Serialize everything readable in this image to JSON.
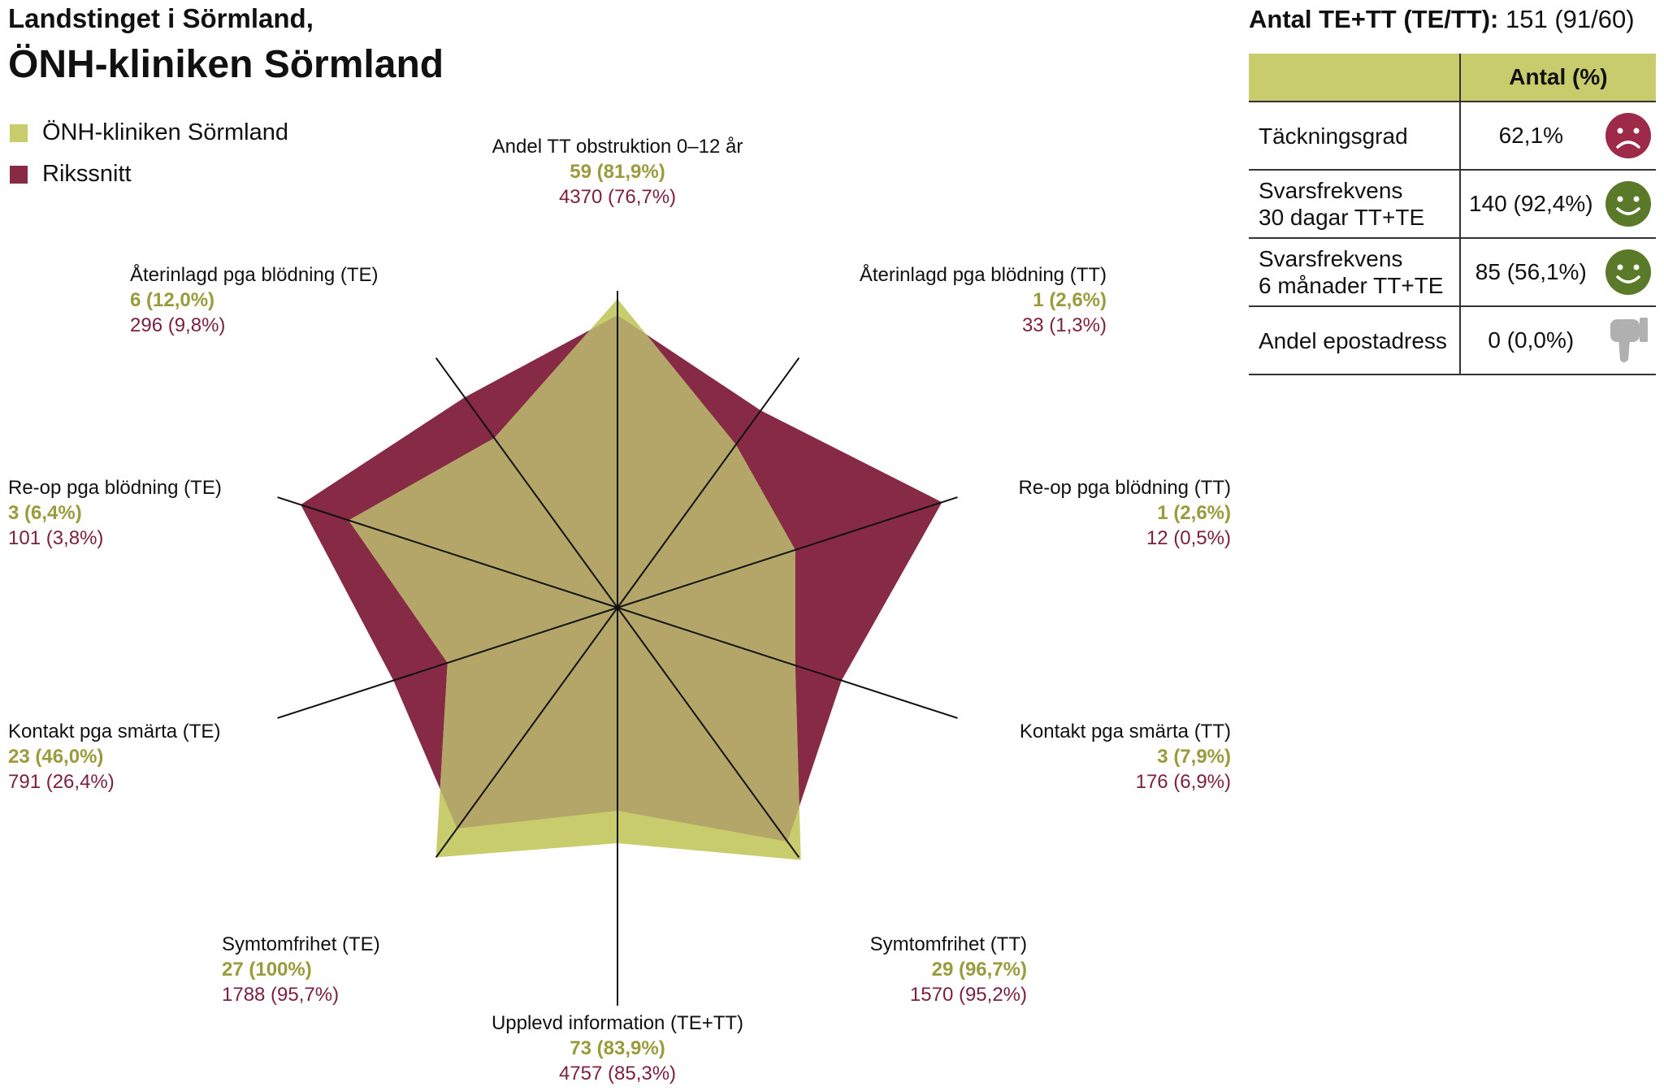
{
  "header": {
    "line1": "Landstinget i Sörmland,",
    "line2": "ÖNH-kliniken Sörmland"
  },
  "legend": {
    "clinic": "ÖNH-kliniken Sörmland",
    "national": "Rikssnitt"
  },
  "colors": {
    "clinic": "#c8cc6c",
    "national": "#862a46",
    "overlap": "#b4a669",
    "clinic_text": "#9a9b3c",
    "national_text": "#7b1f3d",
    "table_header": "#c8cc6c",
    "sad": "#9e2a4a",
    "happy": "#5a7a2a",
    "thumb": "#b0b0b0"
  },
  "stats": {
    "title_bold": "Antal TE+TT (TE/TT):",
    "title_value": "151 (91/60)",
    "col_header": "Antal (%)",
    "rows": [
      {
        "label": "Täckningsgrad",
        "value": "62,1%",
        "icon": "sad-face-icon"
      },
      {
        "label": "Svarsfrekvens\n30 dagar TT+TE",
        "value": "140 (92,4%)",
        "icon": "happy-face-icon"
      },
      {
        "label": "Svarsfrekvens\n6 månader TT+TE",
        "value": "85 (56,1%)",
        "icon": "happy-face-icon"
      },
      {
        "label": "Andel epostadress",
        "value": "0 (0,0%)",
        "icon": "thumbs-down-icon"
      }
    ]
  },
  "chart_data": {
    "type": "radar",
    "title": "",
    "grid": false,
    "series": [
      {
        "name": "ÖNH-kliniken Sörmland"
      },
      {
        "name": "Rikssnitt"
      }
    ],
    "axes": [
      {
        "label": "Andel TT obstruktion 0–12 år",
        "clinic_label": "59 (81,9%)",
        "national_label": "4370 (76,7%)",
        "clinic_pct": 81.9,
        "national_pct": 76.7
      },
      {
        "label": "Återinlagd pga blödning (TT)",
        "clinic_label": "1 (2,6%)",
        "national_label": "33 (1,3%)",
        "clinic_pct": 2.6,
        "national_pct": 1.3
      },
      {
        "label": "Re-op pga blödning (TT)",
        "clinic_label": "1 (2,6%)",
        "national_label": "12 (0,5%)",
        "clinic_pct": 2.6,
        "national_pct": 0.5
      },
      {
        "label": "Kontakt pga smärta (TT)",
        "clinic_label": "3 (7,9%)",
        "national_label": "176 (6,9%)",
        "clinic_pct": 7.9,
        "national_pct": 6.9
      },
      {
        "label": "Symtomfrihet (TT)",
        "clinic_label": "29 (96,7%)",
        "national_label": "1570 (95,2%)",
        "clinic_pct": 96.7,
        "national_pct": 95.2
      },
      {
        "label": "Upplevd information (TE+TT)",
        "clinic_label": "73 (83,9%)",
        "national_label": "4757 (85,3%)",
        "clinic_pct": 83.9,
        "national_pct": 85.3
      },
      {
        "label": "Symtomfrihet (TE)",
        "clinic_label": "27 (100%)",
        "national_label": "1788 (95,7%)",
        "clinic_pct": 100,
        "national_pct": 95.7
      },
      {
        "label": "Kontakt pga smärta (TE)",
        "clinic_label": "23 (46,0%)",
        "national_label": "791 (26,4%)",
        "clinic_pct": 46.0,
        "national_pct": 26.4
      },
      {
        "label": "Re-op pga blödning (TE)",
        "clinic_label": "3 (6,4%)",
        "national_label": "101 (3,8%)",
        "clinic_pct": 6.4,
        "national_pct": 3.8
      },
      {
        "label": "Återinlagd pga blödning (TE)",
        "clinic_label": "6 (12,0%)",
        "national_label": "296 (9,8%)",
        "clinic_pct": 12.0,
        "national_pct": 9.8
      }
    ]
  }
}
